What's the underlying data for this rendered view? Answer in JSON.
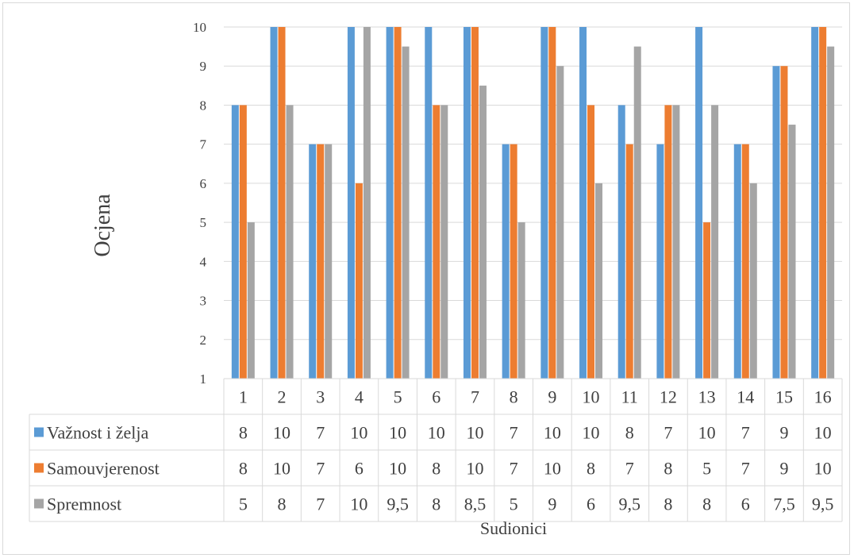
{
  "chart_data": {
    "type": "bar",
    "title": "",
    "xlabel": "Sudionici",
    "ylabel": "Ocjena",
    "ylim": [
      1,
      10
    ],
    "yticks": [
      1,
      2,
      3,
      4,
      5,
      6,
      7,
      8,
      9,
      10
    ],
    "grid": true,
    "legend": "data-table",
    "categories": [
      "1",
      "2",
      "3",
      "4",
      "5",
      "6",
      "7",
      "8",
      "9",
      "10",
      "11",
      "12",
      "13",
      "14",
      "15",
      "16"
    ],
    "series": [
      {
        "name": "Važnost i želja",
        "color": "#5b9bd5",
        "values": [
          8,
          10,
          7,
          10,
          10,
          10,
          10,
          7,
          10,
          10,
          8,
          7,
          10,
          7,
          9,
          10
        ],
        "labels": [
          "8",
          "10",
          "7",
          "10",
          "10",
          "10",
          "10",
          "7",
          "10",
          "10",
          "8",
          "7",
          "10",
          "7",
          "9",
          "10"
        ]
      },
      {
        "name": "Samouvjerenost",
        "color": "#ed7d31",
        "values": [
          8,
          10,
          7,
          6,
          10,
          8,
          10,
          7,
          10,
          8,
          7,
          8,
          5,
          7,
          9,
          10
        ],
        "labels": [
          "8",
          "10",
          "7",
          "6",
          "10",
          "8",
          "10",
          "7",
          "10",
          "8",
          "7",
          "8",
          "5",
          "7",
          "9",
          "10"
        ]
      },
      {
        "name": "Spremnost",
        "color": "#a5a5a5",
        "values": [
          5,
          8,
          7,
          10,
          9.5,
          8,
          8.5,
          5,
          9,
          6,
          9.5,
          8,
          8,
          6,
          7.5,
          9.5
        ],
        "labels": [
          "5",
          "8",
          "7",
          "10",
          "9,5",
          "8",
          "8,5",
          "5",
          "9",
          "6",
          "9,5",
          "8",
          "8",
          "6",
          "7,5",
          "9,5"
        ]
      }
    ]
  }
}
